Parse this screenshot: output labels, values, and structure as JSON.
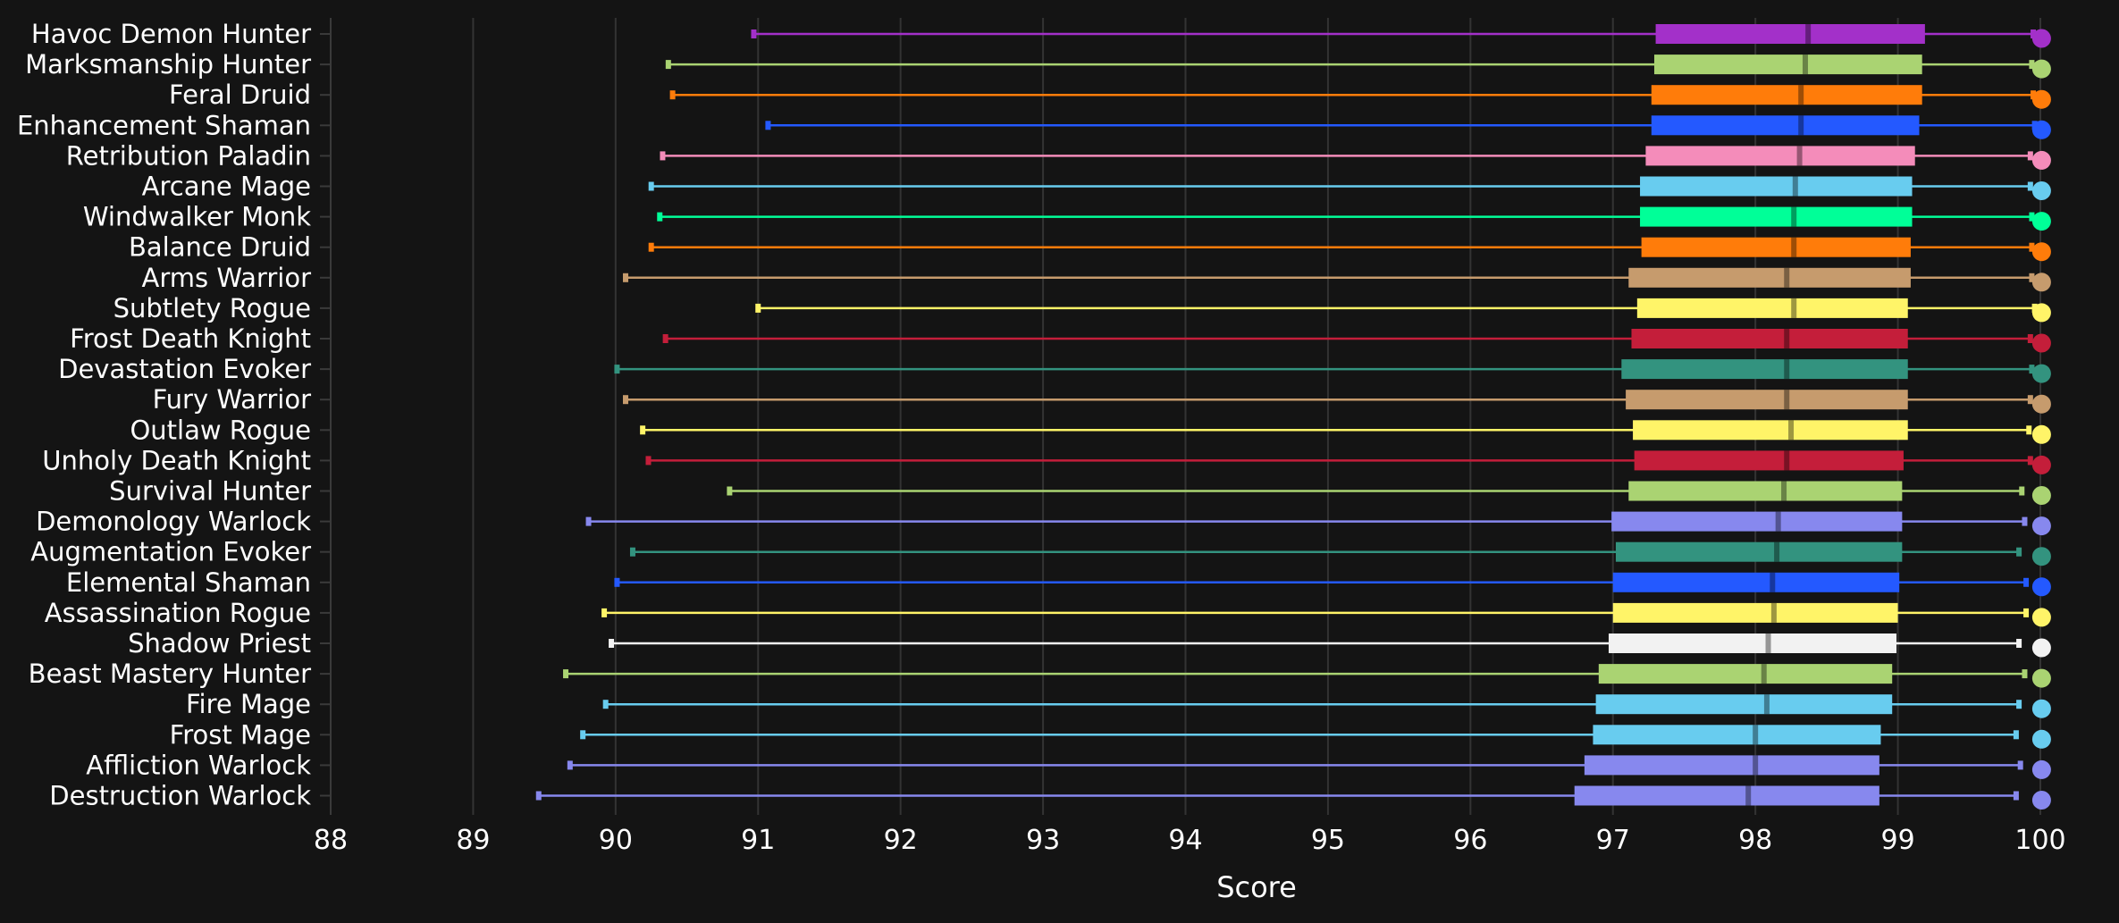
{
  "chart_data": {
    "type": "box",
    "orientation": "horizontal",
    "xlabel": "Score",
    "xlim": [
      88,
      100
    ],
    "xticks": [
      88,
      89,
      90,
      91,
      92,
      93,
      94,
      95,
      96,
      97,
      98,
      99,
      100
    ],
    "xtick_labels": [
      "88",
      "89",
      "90",
      "91",
      "92",
      "93",
      "94",
      "95",
      "96",
      "97",
      "98",
      "99",
      "100"
    ],
    "grid": true,
    "background": "#141414",
    "grid_color": "#333333",
    "categories": [
      {
        "name": "Havoc Demon Hunter",
        "color": "#a330c9",
        "min": 90.97,
        "q1": 97.3,
        "median": 98.37,
        "q3": 99.19,
        "max": 99.95,
        "top": 99.99
      },
      {
        "name": "Marksmanship Hunter",
        "color": "#aad372",
        "min": 90.37,
        "q1": 97.29,
        "median": 98.35,
        "q3": 99.17,
        "max": 99.94,
        "top": 99.99
      },
      {
        "name": "Feral Druid",
        "color": "#ff7c0a",
        "min": 90.4,
        "q1": 97.27,
        "median": 98.32,
        "q3": 99.17,
        "max": 99.95,
        "top": 99.99
      },
      {
        "name": "Enhancement Shaman",
        "color": "#2459ff",
        "min": 91.07,
        "q1": 97.27,
        "median": 98.32,
        "q3": 99.15,
        "max": 99.96,
        "top": 99.99
      },
      {
        "name": "Retribution Paladin",
        "color": "#f48cba",
        "min": 90.33,
        "q1": 97.23,
        "median": 98.31,
        "q3": 99.12,
        "max": 99.93,
        "top": 99.99
      },
      {
        "name": "Arcane Mage",
        "color": "#68ccef",
        "min": 90.25,
        "q1": 97.19,
        "median": 98.28,
        "q3": 99.1,
        "max": 99.93,
        "top": 99.99
      },
      {
        "name": "Windwalker Monk",
        "color": "#00ff98",
        "min": 90.31,
        "q1": 97.19,
        "median": 98.27,
        "q3": 99.1,
        "max": 99.94,
        "top": 99.99
      },
      {
        "name": "Balance Druid",
        "color": "#ff7c0a",
        "min": 90.25,
        "q1": 97.2,
        "median": 98.27,
        "q3": 99.09,
        "max": 99.94,
        "top": 99.99
      },
      {
        "name": "Arms Warrior",
        "color": "#c69b6d",
        "min": 90.07,
        "q1": 97.11,
        "median": 98.22,
        "q3": 99.09,
        "max": 99.94,
        "top": 99.99
      },
      {
        "name": "Subtlety Rogue",
        "color": "#fff468",
        "min": 91.0,
        "q1": 97.17,
        "median": 98.27,
        "q3": 99.07,
        "max": 99.96,
        "top": 99.99
      },
      {
        "name": "Frost Death Knight",
        "color": "#c41e3a",
        "min": 90.35,
        "q1": 97.13,
        "median": 98.22,
        "q3": 99.07,
        "max": 99.93,
        "top": 99.99
      },
      {
        "name": "Devastation Evoker",
        "color": "#33937f",
        "min": 90.01,
        "q1": 97.06,
        "median": 98.22,
        "q3": 99.07,
        "max": 99.94,
        "top": 99.99
      },
      {
        "name": "Fury Warrior",
        "color": "#c69b6d",
        "min": 90.07,
        "q1": 97.09,
        "median": 98.22,
        "q3": 99.07,
        "max": 99.93,
        "top": 99.99
      },
      {
        "name": "Outlaw Rogue",
        "color": "#fff468",
        "min": 90.19,
        "q1": 97.14,
        "median": 98.25,
        "q3": 99.07,
        "max": 99.92,
        "top": 99.99
      },
      {
        "name": "Unholy Death Knight",
        "color": "#c41e3a",
        "min": 90.23,
        "q1": 97.15,
        "median": 98.22,
        "q3": 99.04,
        "max": 99.93,
        "top": 99.99
      },
      {
        "name": "Survival Hunter",
        "color": "#aad372",
        "min": 90.8,
        "q1": 97.11,
        "median": 98.2,
        "q3": 99.03,
        "max": 99.87,
        "top": 99.99
      },
      {
        "name": "Demonology Warlock",
        "color": "#8788ee",
        "min": 89.81,
        "q1": 96.99,
        "median": 98.16,
        "q3": 99.03,
        "max": 99.89,
        "top": 99.99
      },
      {
        "name": "Augmentation Evoker",
        "color": "#33937f",
        "min": 90.12,
        "q1": 97.02,
        "median": 98.15,
        "q3": 99.03,
        "max": 99.85,
        "top": 99.99
      },
      {
        "name": "Elemental Shaman",
        "color": "#2459ff",
        "min": 90.01,
        "q1": 97.0,
        "median": 98.12,
        "q3": 99.01,
        "max": 99.9,
        "top": 99.99
      },
      {
        "name": "Assassination Rogue",
        "color": "#fff468",
        "min": 89.92,
        "q1": 97.0,
        "median": 98.13,
        "q3": 99.0,
        "max": 99.9,
        "top": 99.99
      },
      {
        "name": "Shadow Priest",
        "color": "#f2f2f2",
        "min": 89.97,
        "q1": 96.97,
        "median": 98.09,
        "q3": 98.99,
        "max": 99.85,
        "top": 99.99
      },
      {
        "name": "Beast Mastery Hunter",
        "color": "#aad372",
        "min": 89.65,
        "q1": 96.9,
        "median": 98.06,
        "q3": 98.96,
        "max": 99.89,
        "top": 99.99
      },
      {
        "name": "Fire Mage",
        "color": "#68ccef",
        "min": 89.93,
        "q1": 96.88,
        "median": 98.08,
        "q3": 98.96,
        "max": 99.85,
        "top": 99.99
      },
      {
        "name": "Frost Mage",
        "color": "#68ccef",
        "min": 89.77,
        "q1": 96.86,
        "median": 98.0,
        "q3": 98.88,
        "max": 99.83,
        "top": 99.99
      },
      {
        "name": "Affliction Warlock",
        "color": "#8788ee",
        "min": 89.68,
        "q1": 96.8,
        "median": 98.0,
        "q3": 98.87,
        "max": 99.86,
        "top": 99.99
      },
      {
        "name": "Destruction Warlock",
        "color": "#8788ee",
        "min": 89.46,
        "q1": 96.73,
        "median": 97.95,
        "q3": 98.87,
        "max": 99.83,
        "top": 99.99
      }
    ]
  }
}
